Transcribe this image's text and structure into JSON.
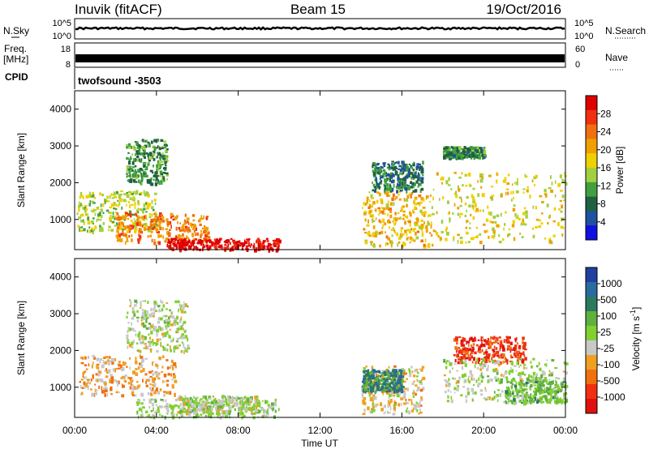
{
  "header": {
    "station": "Inuvik (fitACF)",
    "beam": "Beam 15",
    "date": "19/Oct/2016"
  },
  "top_panels": {
    "nsky_label": "N.Sky",
    "nsky_ticks": [
      "10^5",
      "10^0"
    ],
    "nsearch_label": "N.Search",
    "freq_label_1": "Freq.",
    "freq_label_2": "[MHz]",
    "freq_ticks": [
      "18",
      "8"
    ],
    "nave_ticks": [
      "60",
      "0"
    ],
    "nave_label": "Nave",
    "cpid_label": "CPID",
    "cpid_value": "twofsound -3503"
  },
  "power_panel": {
    "ylabel": "Slant Range [km]",
    "yticks": [
      "1000",
      "2000",
      "3000",
      "4000"
    ],
    "colorbar_label": "Power [dB]",
    "colorbar_ticks": [
      "28",
      "24",
      "20",
      "16",
      "12",
      "8",
      "4"
    ],
    "colors": [
      "#e00000",
      "#f03010",
      "#f07010",
      "#f0a000",
      "#f0d000",
      "#a0d040",
      "#40a040",
      "#206040",
      "#2050a0",
      "#1010e0"
    ]
  },
  "velocity_panel": {
    "ylabel": "Slant Range [km]",
    "yticks": [
      "1000",
      "2000",
      "3000",
      "4000"
    ],
    "colorbar_label": "Velocity [m s",
    "colorbar_label_sup": "-1",
    "colorbar_label_end": "]",
    "colorbar_ticks": [
      "1000",
      "500",
      "100",
      "25",
      "-25",
      "-100",
      "-500",
      "-1000"
    ],
    "colors": [
      "#2040a0",
      "#2a6aa0",
      "#2a7a60",
      "#60b040",
      "#80d030",
      "#c8c8c8",
      "#f0a020",
      "#f07010",
      "#f03010",
      "#e01010"
    ]
  },
  "x_axis": {
    "label": "Time UT",
    "ticks": [
      "00:00",
      "04:00",
      "08:00",
      "12:00",
      "16:00",
      "20:00",
      "00:00"
    ]
  },
  "chart_data": [
    {
      "type": "heatmap",
      "title": "",
      "xlabel": "Time UT",
      "ylabel": "Slant Range [km]",
      "xlim": [
        0,
        24
      ],
      "ylim": [
        180,
        4500
      ],
      "colorbar": "Power [dB]",
      "clim": [
        0,
        30
      ],
      "regions": [
        {
          "t0": 0.1,
          "t1": 4.0,
          "r0": 700,
          "r1": 1800,
          "value": 14
        },
        {
          "t0": 2.0,
          "t1": 6.5,
          "r0": 400,
          "r1": 1200,
          "value": 22
        },
        {
          "t0": 4.5,
          "t1": 10.0,
          "r0": 200,
          "r1": 500,
          "value": 29
        },
        {
          "t0": 2.5,
          "t1": 4.5,
          "r0": 2000,
          "r1": 3200,
          "value": 10
        },
        {
          "t0": 14.0,
          "t1": 17.5,
          "r0": 300,
          "r1": 1800,
          "value": 18
        },
        {
          "t0": 14.5,
          "t1": 17.0,
          "r0": 1800,
          "r1": 2600,
          "value": 8
        },
        {
          "t0": 17.5,
          "t1": 24.0,
          "r0": 400,
          "r1": 2300,
          "value": 16
        },
        {
          "t0": 18.0,
          "t1": 20.0,
          "r0": 2700,
          "r1": 3000,
          "value": 9
        }
      ]
    },
    {
      "type": "heatmap",
      "title": "",
      "xlabel": "Time UT",
      "ylabel": "Slant Range [km]",
      "xlim": [
        0,
        24
      ],
      "ylim": [
        180,
        4500
      ],
      "colorbar": "Velocity [m s-1]",
      "clim": [
        -1000,
        1000
      ],
      "regions": [
        {
          "t0": 0.2,
          "t1": 5.0,
          "r0": 800,
          "r1": 1900,
          "value": -300
        },
        {
          "t0": 2.5,
          "t1": 5.5,
          "r0": 2000,
          "r1": 3400,
          "value": 0
        },
        {
          "t0": 3.0,
          "t1": 10.0,
          "r0": 200,
          "r1": 700,
          "value": 50
        },
        {
          "t0": 5.0,
          "t1": 9.0,
          "r0": 300,
          "r1": 800,
          "value": 0
        },
        {
          "t0": 14.0,
          "t1": 17.0,
          "r0": 300,
          "r1": 1600,
          "value": -200
        },
        {
          "t0": 14.0,
          "t1": 16.0,
          "r0": 900,
          "r1": 1500,
          "value": 500
        },
        {
          "t0": 18.5,
          "t1": 22.0,
          "r0": 1700,
          "r1": 2400,
          "value": -700
        },
        {
          "t0": 18.0,
          "t1": 24.0,
          "r0": 600,
          "r1": 1800,
          "value": 0
        },
        {
          "t0": 21.0,
          "t1": 24.0,
          "r0": 600,
          "r1": 1300,
          "value": 200
        }
      ]
    }
  ]
}
